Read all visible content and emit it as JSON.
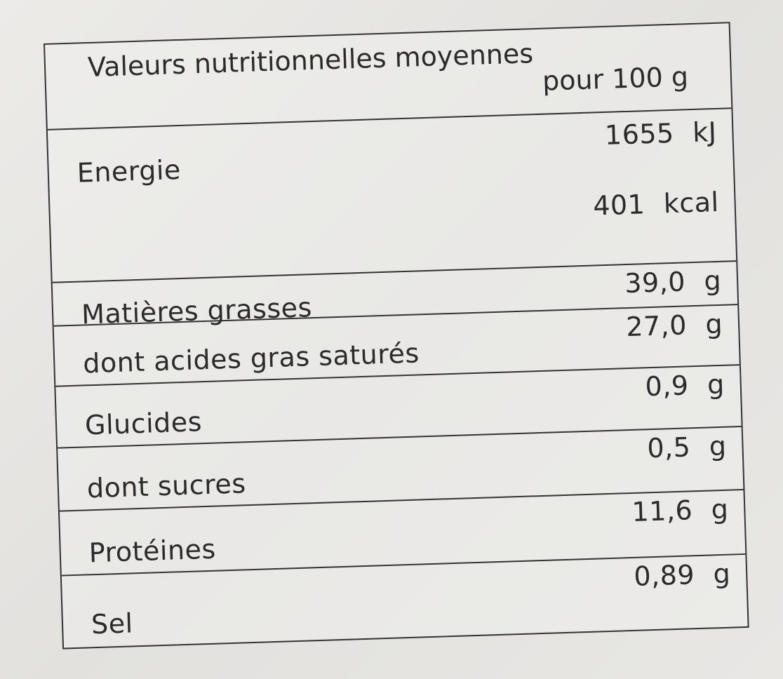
{
  "table": {
    "title": "Valeurs nutritionnelles moyennes",
    "per": "pour 100 g",
    "energy": {
      "label": "Energie",
      "kj": "1655  kJ",
      "kcal": "401  kcal"
    },
    "rows": [
      {
        "label": "Matières grasses",
        "value": "39,0 g"
      },
      {
        "label": "dont acides gras saturés",
        "value": "27,0 g"
      },
      {
        "label": "Glucides",
        "value": "0,9 g"
      },
      {
        "label": "dont sucres",
        "value": "0,5 g"
      },
      {
        "label": "Protéines",
        "value": "11,6 g"
      },
      {
        "label": "Sel",
        "value": "0,89 g"
      }
    ]
  }
}
